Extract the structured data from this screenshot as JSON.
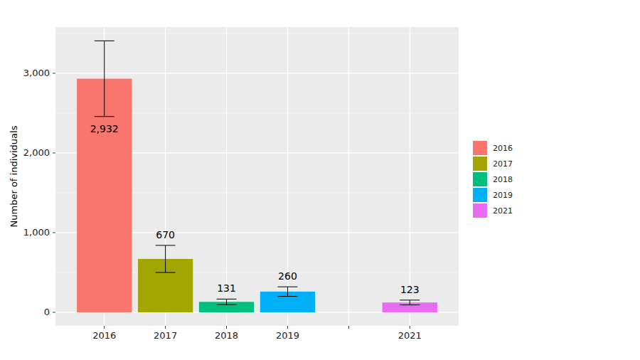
{
  "chart_data": {
    "type": "bar",
    "y_label": "Number of individuals",
    "categories": [
      "2016",
      "2017",
      "2018",
      "2019",
      null,
      "2021"
    ],
    "values": [
      2932,
      670,
      131,
      260,
      null,
      123
    ],
    "value_labels": [
      "2,932",
      "670",
      "131",
      "260",
      null,
      "123"
    ],
    "errors": [
      475,
      170,
      35,
      60,
      null,
      30
    ],
    "colors": [
      "#f8766d",
      "#a3a500",
      "#00bf7d",
      "#00b0f6",
      null,
      "#e76bf3"
    ],
    "ylim": [
      -170,
      3580
    ],
    "yticks": [
      0,
      {
        "value": 1000,
        "label": "1,000"
      },
      {
        "value": 2000,
        "label": "2,000"
      },
      {
        "value": 3000,
        "label": "3,000"
      }
    ],
    "grid": true,
    "data_labels": true,
    "legend": "right"
  }
}
